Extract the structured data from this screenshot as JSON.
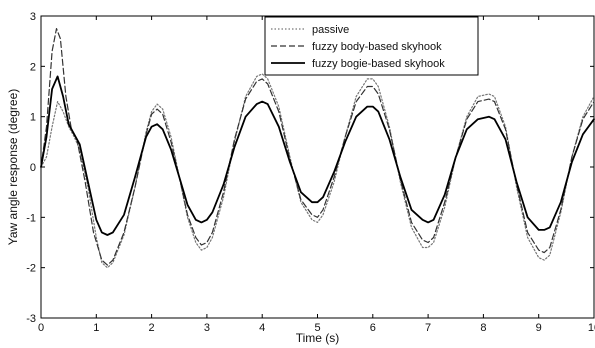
{
  "chart_data": {
    "type": "line",
    "title": "",
    "xlabel": "Time (s)",
    "ylabel": "Yaw angle response (degree)",
    "xlim": [
      0,
      10
    ],
    "ylim": [
      -3,
      3
    ],
    "xticks": [
      0,
      1,
      2,
      3,
      4,
      5,
      6,
      7,
      8,
      9,
      10
    ],
    "yticks": [
      -3,
      -2,
      -1,
      0,
      1,
      2,
      3
    ],
    "grid": false,
    "legend_position": "top-right",
    "series": [
      {
        "name": "passive",
        "style": "dotted",
        "color": "#777777",
        "x": [
          0,
          0.1,
          0.2,
          0.3,
          0.4,
          0.5,
          0.6,
          0.7,
          0.85,
          1.0,
          1.1,
          1.2,
          1.3,
          1.5,
          1.7,
          1.9,
          2.0,
          2.1,
          2.2,
          2.35,
          2.5,
          2.65,
          2.8,
          2.9,
          3.0,
          3.1,
          3.3,
          3.5,
          3.7,
          3.9,
          4.0,
          4.1,
          4.3,
          4.5,
          4.7,
          4.9,
          5.0,
          5.1,
          5.3,
          5.5,
          5.7,
          5.9,
          6.0,
          6.1,
          6.3,
          6.5,
          6.7,
          6.9,
          7.0,
          7.1,
          7.3,
          7.5,
          7.7,
          7.9,
          8.1,
          8.2,
          8.4,
          8.6,
          8.8,
          9.0,
          9.1,
          9.2,
          9.4,
          9.6,
          9.8,
          10.0
        ],
        "y": [
          0,
          0.2,
          0.8,
          1.3,
          1.1,
          0.8,
          0.6,
          0.35,
          -0.4,
          -1.4,
          -1.9,
          -2.0,
          -1.9,
          -1.35,
          -0.4,
          0.7,
          1.1,
          1.25,
          1.15,
          0.6,
          -0.2,
          -1.0,
          -1.5,
          -1.65,
          -1.6,
          -1.4,
          -0.6,
          0.5,
          1.4,
          1.8,
          1.85,
          1.75,
          1.2,
          0.2,
          -0.7,
          -1.05,
          -1.1,
          -0.95,
          -0.3,
          0.6,
          1.4,
          1.75,
          1.75,
          1.6,
          0.8,
          -0.3,
          -1.2,
          -1.6,
          -1.6,
          -1.5,
          -0.8,
          0.2,
          1.0,
          1.4,
          1.45,
          1.4,
          0.8,
          -0.4,
          -1.4,
          -1.8,
          -1.85,
          -1.75,
          -0.9,
          0.2,
          1.0,
          1.4
        ]
      },
      {
        "name": "fuzzy body-based skyhook",
        "style": "dashed",
        "color": "#333333",
        "x": [
          0,
          0.1,
          0.2,
          0.28,
          0.35,
          0.45,
          0.55,
          0.65,
          0.8,
          0.95,
          1.1,
          1.2,
          1.3,
          1.5,
          1.7,
          1.9,
          2.0,
          2.1,
          2.2,
          2.35,
          2.5,
          2.65,
          2.8,
          2.9,
          3.0,
          3.1,
          3.3,
          3.5,
          3.7,
          3.9,
          4.0,
          4.1,
          4.3,
          4.5,
          4.7,
          4.9,
          5.0,
          5.1,
          5.3,
          5.5,
          5.7,
          5.9,
          6.0,
          6.1,
          6.3,
          6.5,
          6.7,
          6.9,
          7.0,
          7.1,
          7.3,
          7.5,
          7.7,
          7.9,
          8.1,
          8.2,
          8.4,
          8.6,
          8.8,
          9.0,
          9.1,
          9.2,
          9.4,
          9.6,
          9.8,
          10.0
        ],
        "y": [
          0,
          0.8,
          2.3,
          2.75,
          2.55,
          1.4,
          0.75,
          0.55,
          -0.3,
          -1.3,
          -1.85,
          -1.95,
          -1.85,
          -1.3,
          -0.4,
          0.65,
          1.05,
          1.15,
          1.05,
          0.5,
          -0.2,
          -0.95,
          -1.4,
          -1.55,
          -1.5,
          -1.3,
          -0.5,
          0.55,
          1.35,
          1.7,
          1.75,
          1.65,
          1.1,
          0.15,
          -0.65,
          -0.95,
          -1.0,
          -0.85,
          -0.2,
          0.6,
          1.3,
          1.6,
          1.6,
          1.45,
          0.75,
          -0.25,
          -1.1,
          -1.45,
          -1.5,
          -1.4,
          -0.7,
          0.2,
          0.95,
          1.3,
          1.35,
          1.3,
          0.75,
          -0.35,
          -1.3,
          -1.65,
          -1.7,
          -1.6,
          -0.85,
          0.2,
          0.95,
          1.3
        ]
      },
      {
        "name": "fuzzy bogie-based skyhook",
        "style": "solid",
        "color": "#000000",
        "x": [
          0,
          0.1,
          0.2,
          0.3,
          0.4,
          0.5,
          0.6,
          0.7,
          0.85,
          1.0,
          1.1,
          1.2,
          1.3,
          1.5,
          1.7,
          1.9,
          2.0,
          2.1,
          2.2,
          2.35,
          2.5,
          2.65,
          2.8,
          2.9,
          3.0,
          3.1,
          3.3,
          3.5,
          3.7,
          3.9,
          4.0,
          4.1,
          4.3,
          4.5,
          4.7,
          4.9,
          5.0,
          5.1,
          5.3,
          5.5,
          5.7,
          5.9,
          6.0,
          6.1,
          6.3,
          6.5,
          6.7,
          6.9,
          7.0,
          7.1,
          7.3,
          7.5,
          7.7,
          7.9,
          8.1,
          8.2,
          8.4,
          8.6,
          8.8,
          9.0,
          9.1,
          9.2,
          9.4,
          9.6,
          9.8,
          10.0
        ],
        "y": [
          0,
          0.6,
          1.55,
          1.8,
          1.4,
          0.85,
          0.65,
          0.45,
          -0.3,
          -1.05,
          -1.3,
          -1.35,
          -1.3,
          -0.95,
          -0.2,
          0.6,
          0.8,
          0.85,
          0.75,
          0.35,
          -0.2,
          -0.75,
          -1.05,
          -1.1,
          -1.05,
          -0.9,
          -0.35,
          0.4,
          1.0,
          1.25,
          1.3,
          1.25,
          0.8,
          0.1,
          -0.5,
          -0.7,
          -0.7,
          -0.6,
          -0.1,
          0.5,
          1.0,
          1.2,
          1.2,
          1.1,
          0.55,
          -0.2,
          -0.85,
          -1.05,
          -1.1,
          -1.05,
          -0.55,
          0.2,
          0.75,
          0.95,
          1.0,
          0.95,
          0.55,
          -0.3,
          -1.0,
          -1.25,
          -1.25,
          -1.2,
          -0.7,
          0.1,
          0.65,
          0.95
        ]
      }
    ]
  }
}
